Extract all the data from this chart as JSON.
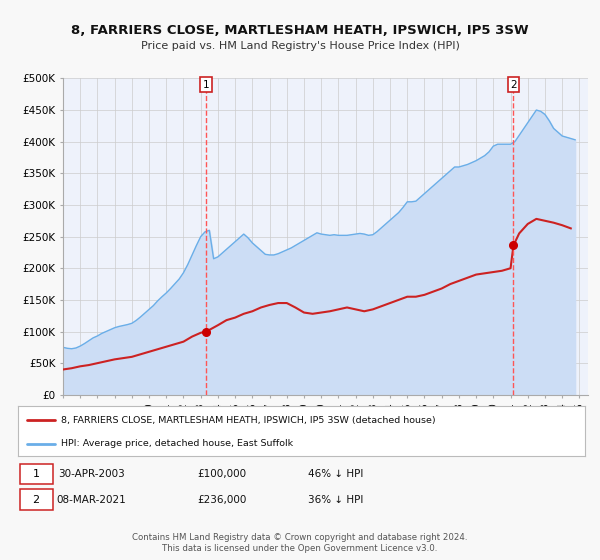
{
  "title": "8, FARRIERS CLOSE, MARTLESHAM HEATH, IPSWICH, IP5 3SW",
  "subtitle": "Price paid vs. HM Land Registry's House Price Index (HPI)",
  "bg_color": "#f8f8f8",
  "plot_bg_color": "#eef2fb",
  "grid_color": "#cccccc",
  "hpi_color": "#6aaee8",
  "hpi_fill_color": "#ccddf5",
  "price_color": "#cc2222",
  "marker_color": "#cc0000",
  "vline_color": "#ff5555",
  "ylim": [
    0,
    500000
  ],
  "yticks": [
    0,
    50000,
    100000,
    150000,
    200000,
    250000,
    300000,
    350000,
    400000,
    450000,
    500000
  ],
  "ytick_labels": [
    "£0",
    "£50K",
    "£100K",
    "£150K",
    "£200K",
    "£250K",
    "£300K",
    "£350K",
    "£400K",
    "£450K",
    "£500K"
  ],
  "xlim_start": 1995.0,
  "xlim_end": 2025.5,
  "xtick_years": [
    1995,
    1996,
    1997,
    1998,
    1999,
    2000,
    2001,
    2002,
    2003,
    2004,
    2005,
    2006,
    2007,
    2008,
    2009,
    2010,
    2011,
    2012,
    2013,
    2014,
    2015,
    2016,
    2017,
    2018,
    2019,
    2020,
    2021,
    2022,
    2023,
    2024,
    2025
  ],
  "event1_x": 2003.33,
  "event1_y": 100000,
  "event1_label": "1",
  "event1_date": "30-APR-2003",
  "event1_price": "£100,000",
  "event1_hpi": "46% ↓ HPI",
  "event2_x": 2021.17,
  "event2_y": 236000,
  "event2_label": "2",
  "event2_date": "08-MAR-2021",
  "event2_price": "£236,000",
  "event2_hpi": "36% ↓ HPI",
  "legend_line1": "8, FARRIERS CLOSE, MARTLESHAM HEATH, IPSWICH, IP5 3SW (detached house)",
  "legend_line2": "HPI: Average price, detached house, East Suffolk",
  "footer": "Contains HM Land Registry data © Crown copyright and database right 2024.\nThis data is licensed under the Open Government Licence v3.0.",
  "hpi_data_x": [
    1995.0,
    1995.25,
    1995.5,
    1995.75,
    1996.0,
    1996.25,
    1996.5,
    1996.75,
    1997.0,
    1997.25,
    1997.5,
    1997.75,
    1998.0,
    1998.25,
    1998.5,
    1998.75,
    1999.0,
    1999.25,
    1999.5,
    1999.75,
    2000.0,
    2000.25,
    2000.5,
    2000.75,
    2001.0,
    2001.25,
    2001.5,
    2001.75,
    2002.0,
    2002.25,
    2002.5,
    2002.75,
    2003.0,
    2003.25,
    2003.5,
    2003.75,
    2004.0,
    2004.25,
    2004.5,
    2004.75,
    2005.0,
    2005.25,
    2005.5,
    2005.75,
    2006.0,
    2006.25,
    2006.5,
    2006.75,
    2007.0,
    2007.25,
    2007.5,
    2007.75,
    2008.0,
    2008.25,
    2008.5,
    2008.75,
    2009.0,
    2009.25,
    2009.5,
    2009.75,
    2010.0,
    2010.25,
    2010.5,
    2010.75,
    2011.0,
    2011.25,
    2011.5,
    2011.75,
    2012.0,
    2012.25,
    2012.5,
    2012.75,
    2013.0,
    2013.25,
    2013.5,
    2013.75,
    2014.0,
    2014.25,
    2014.5,
    2014.75,
    2015.0,
    2015.25,
    2015.5,
    2015.75,
    2016.0,
    2016.25,
    2016.5,
    2016.75,
    2017.0,
    2017.25,
    2017.5,
    2017.75,
    2018.0,
    2018.25,
    2018.5,
    2018.75,
    2019.0,
    2019.25,
    2019.5,
    2019.75,
    2020.0,
    2020.25,
    2020.5,
    2020.75,
    2021.0,
    2021.25,
    2021.5,
    2021.75,
    2022.0,
    2022.25,
    2022.5,
    2022.75,
    2023.0,
    2023.25,
    2023.5,
    2023.75,
    2024.0,
    2024.25,
    2024.5,
    2024.75
  ],
  "hpi_data_y": [
    75000,
    73500,
    72800,
    74000,
    77000,
    81000,
    85500,
    90000,
    93000,
    97000,
    100000,
    103000,
    106000,
    108000,
    109500,
    111000,
    113000,
    117500,
    123000,
    129000,
    135000,
    141000,
    148500,
    155000,
    161000,
    168000,
    175500,
    183000,
    193000,
    206000,
    221000,
    236000,
    250000,
    257500,
    260000,
    215000,
    218000,
    224000,
    230000,
    236000,
    242000,
    248000,
    254000,
    248000,
    240000,
    234000,
    228000,
    222000,
    221000,
    221000,
    223000,
    226000,
    229000,
    232000,
    236000,
    240000,
    244000,
    248000,
    252000,
    256000,
    254000,
    253000,
    252000,
    253000,
    252000,
    252000,
    252000,
    253000,
    254000,
    255000,
    254000,
    252000,
    253000,
    258000,
    264000,
    270000,
    276000,
    282000,
    288000,
    296000,
    305000,
    305000,
    306000,
    312000,
    318000,
    324000,
    330000,
    336000,
    342000,
    348000,
    354000,
    360000,
    360000,
    362000,
    364000,
    367000,
    370000,
    374000,
    378000,
    384000,
    393000,
    396000,
    396000,
    396000,
    396000,
    400000,
    410000,
    420000,
    430000,
    440000,
    450000,
    448000,
    443000,
    433000,
    421000,
    415000,
    409000,
    407000,
    405000,
    403000
  ],
  "price_data_x": [
    1995.0,
    1995.5,
    1996.0,
    1996.5,
    1997.0,
    1997.5,
    1998.0,
    1998.5,
    1999.0,
    1999.5,
    2000.0,
    2000.5,
    2001.0,
    2001.5,
    2002.0,
    2002.5,
    2003.0,
    2003.33,
    2004.0,
    2004.5,
    2005.0,
    2005.5,
    2006.0,
    2006.5,
    2007.0,
    2007.5,
    2008.0,
    2008.5,
    2009.0,
    2009.5,
    2010.0,
    2010.5,
    2011.0,
    2011.5,
    2012.0,
    2012.5,
    2013.0,
    2013.5,
    2014.0,
    2014.5,
    2015.0,
    2015.5,
    2016.0,
    2016.5,
    2017.0,
    2017.5,
    2018.0,
    2018.5,
    2019.0,
    2019.5,
    2020.0,
    2020.5,
    2021.0,
    2021.17,
    2021.5,
    2022.0,
    2022.5,
    2023.0,
    2023.5,
    2024.0,
    2024.5
  ],
  "price_data_y": [
    40000,
    42000,
    45000,
    47000,
    50000,
    53000,
    56000,
    58000,
    60000,
    64000,
    68000,
    72000,
    76000,
    80000,
    84000,
    92000,
    98000,
    100000,
    110000,
    118000,
    122000,
    128000,
    132000,
    138000,
    142000,
    145000,
    145000,
    138000,
    130000,
    128000,
    130000,
    132000,
    135000,
    138000,
    135000,
    132000,
    135000,
    140000,
    145000,
    150000,
    155000,
    155000,
    158000,
    163000,
    168000,
    175000,
    180000,
    185000,
    190000,
    192000,
    194000,
    196000,
    200000,
    236000,
    255000,
    270000,
    278000,
    275000,
    272000,
    268000,
    263000
  ]
}
